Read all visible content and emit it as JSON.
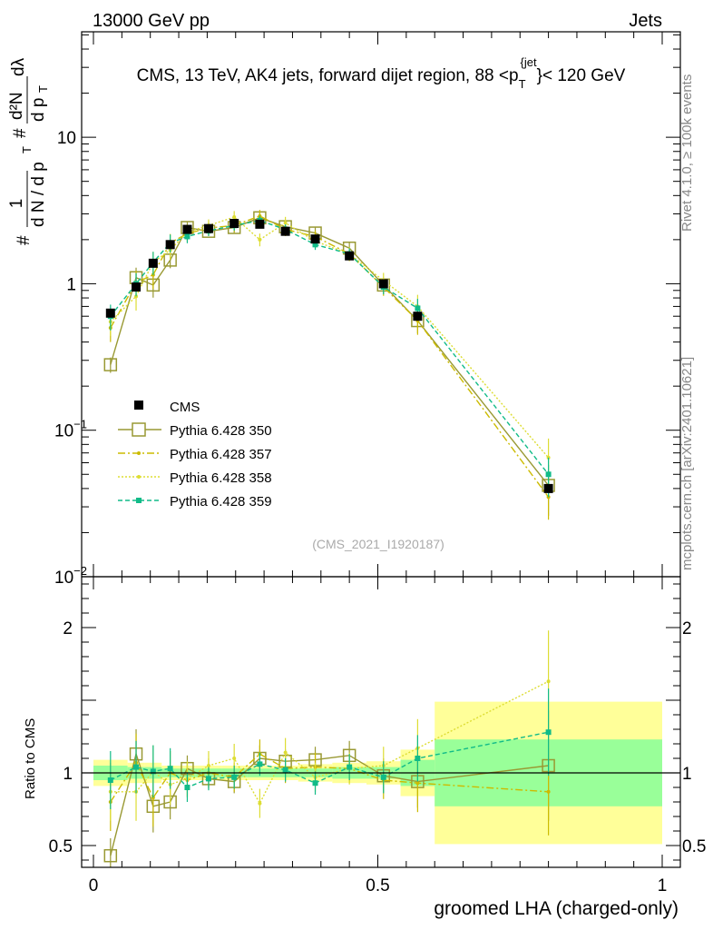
{
  "header": {
    "left": "13000 GeV pp",
    "right": "Jets"
  },
  "side_labels": {
    "rivet": "Rivet 4.1.0, ≥ 100k events",
    "mcplots": "mcplots.cern.ch [arXiv:2401.10621]"
  },
  "chart_data": {
    "type": "line",
    "title": "CMS, 13 TeV, AK4 jets, forward dijet region, 88 < p_T^{jet} < 120 GeV",
    "title_parts": {
      "main": "CMS, 13 TeV, AK4 jets, forward dijet region, 88 <p",
      "sub": "T",
      "sup": "{jet",
      "end": "}< 120 GeV"
    },
    "analysis_id": "(CMS_2021_I1920187)",
    "xlabel": "groomed LHA (charged-only)",
    "ylabel": "1/dN/dp_T # d²N/dp_T dλ",
    "ylabel_parts": {
      "num_top": "#",
      "frac1_num": "1",
      "frac1_den": "d N / d p",
      "frac1_den_sub": "T",
      "num_mid": "#",
      "frac2_num": "d²N",
      "frac2_den": "d p",
      "frac2_den_sub": "T",
      "frac2_tail": "dλ"
    },
    "ratio_ylabel": "Ratio to CMS",
    "xlim": [
      0,
      1
    ],
    "main_ylim_log": [
      -2.0,
      1.72
    ],
    "ratio_ylim": [
      0.35,
      2.35
    ],
    "x_ticks": [
      {
        "v": 0,
        "label": "0"
      },
      {
        "v": 0.5,
        "label": "0.5"
      },
      {
        "v": 1,
        "label": "1"
      }
    ],
    "main_y_ticks": [
      {
        "v": 0.01,
        "label": "10",
        "sup": "−2"
      },
      {
        "v": 0.1,
        "label": "10",
        "sup": "−1"
      },
      {
        "v": 1,
        "label": "1",
        "sup": ""
      },
      {
        "v": 10,
        "label": "10",
        "sup": ""
      }
    ],
    "ratio_y_ticks": [
      {
        "v": 0.5,
        "label": "0.5"
      },
      {
        "v": 1,
        "label": "1"
      },
      {
        "v": 2,
        "label": "2"
      }
    ],
    "bins": [
      [
        0.0,
        0.06
      ],
      [
        0.06,
        0.09
      ],
      [
        0.09,
        0.12
      ],
      [
        0.12,
        0.15
      ],
      [
        0.15,
        0.18
      ],
      [
        0.18,
        0.225
      ],
      [
        0.225,
        0.27
      ],
      [
        0.27,
        0.315
      ],
      [
        0.315,
        0.36
      ],
      [
        0.36,
        0.42
      ],
      [
        0.42,
        0.48
      ],
      [
        0.48,
        0.54
      ],
      [
        0.54,
        0.6
      ],
      [
        0.6,
        1.0
      ]
    ],
    "x": [
      0.03,
      0.075,
      0.105,
      0.135,
      0.165,
      0.2025,
      0.2475,
      0.2925,
      0.3375,
      0.39,
      0.45,
      0.51,
      0.57,
      0.8
    ],
    "data": {
      "name": "CMS",
      "y": [
        0.63,
        0.95,
        1.38,
        1.85,
        2.35,
        2.38,
        2.58,
        2.55,
        2.28,
        2.02,
        1.55,
        1.0,
        0.6,
        0.04
      ],
      "stat_band": [
        0.05,
        0.04,
        0.04,
        0.03,
        0.03,
        0.03,
        0.03,
        0.03,
        0.03,
        0.03,
        0.04,
        0.04,
        0.09,
        0.23
      ],
      "total_band": [
        0.09,
        0.07,
        0.07,
        0.05,
        0.05,
        0.05,
        0.05,
        0.05,
        0.05,
        0.06,
        0.07,
        0.08,
        0.16,
        0.49
      ]
    },
    "series": [
      {
        "name": "Pythia 6.428 350",
        "color": "#999933",
        "style": "solid",
        "marker": "open-square",
        "y": [
          0.28,
          1.1,
          0.98,
          1.45,
          2.42,
          2.28,
          2.42,
          2.82,
          2.45,
          2.22,
          1.75,
          0.98,
          0.56,
          0.042
        ],
        "ratio": [
          0.43,
          1.13,
          0.77,
          0.8,
          1.03,
          0.96,
          0.94,
          1.1,
          1.08,
          1.09,
          1.12,
          0.98,
          0.94,
          1.05
        ],
        "ratio_err": [
          0.12,
          0.17,
          0.18,
          0.12,
          0.09,
          0.07,
          0.08,
          0.09,
          0.08,
          0.09,
          0.1,
          0.12,
          0.18,
          0.38
        ]
      },
      {
        "name": "Pythia 6.428 357",
        "color": "#ccbb00",
        "style": "dashdot",
        "marker": "dot",
        "y": [
          0.5,
          1.02,
          1.15,
          1.9,
          2.2,
          2.4,
          2.5,
          2.9,
          2.35,
          2.1,
          1.6,
          0.95,
          0.56,
          0.035
        ],
        "ratio": [
          0.8,
          1.07,
          0.83,
          1.0,
          0.95,
          1.0,
          0.97,
          1.13,
          1.03,
          1.04,
          1.03,
          0.95,
          0.93,
          0.87
        ],
        "ratio_err": [
          0.2,
          0.2,
          0.2,
          0.15,
          0.12,
          0.1,
          0.1,
          0.1,
          0.1,
          0.1,
          0.1,
          0.13,
          0.2,
          0.3
        ]
      },
      {
        "name": "Pythia 6.428 358",
        "color": "#dddd33",
        "style": "dotted",
        "marker": "dot",
        "y": [
          0.55,
          0.82,
          1.4,
          1.7,
          2.25,
          2.5,
          2.85,
          2.0,
          2.6,
          1.95,
          1.6,
          1.05,
          0.7,
          0.065
        ],
        "ratio": [
          0.87,
          0.87,
          1.01,
          0.92,
          0.96,
          1.05,
          1.1,
          0.79,
          1.14,
          0.97,
          1.03,
          1.05,
          1.17,
          1.63
        ],
        "ratio_err": [
          0.2,
          0.2,
          0.18,
          0.14,
          0.12,
          0.1,
          0.1,
          0.1,
          0.1,
          0.1,
          0.11,
          0.13,
          0.2,
          0.35
        ]
      },
      {
        "name": "Pythia 6.428 359",
        "color": "#11bb88",
        "style": "dashed",
        "marker": "filled-square",
        "y": [
          0.6,
          1.0,
          1.4,
          1.9,
          2.1,
          2.3,
          2.5,
          2.7,
          2.35,
          1.85,
          1.6,
          0.95,
          0.68,
          0.05
        ],
        "ratio": [
          0.95,
          1.04,
          1.01,
          1.03,
          0.9,
          0.96,
          0.97,
          1.06,
          1.02,
          0.93,
          1.04,
          0.97,
          1.1,
          1.28
        ],
        "ratio_err": [
          0.2,
          0.18,
          0.18,
          0.14,
          0.1,
          0.08,
          0.08,
          0.08,
          0.08,
          0.08,
          0.09,
          0.11,
          0.16,
          0.3
        ]
      }
    ]
  }
}
